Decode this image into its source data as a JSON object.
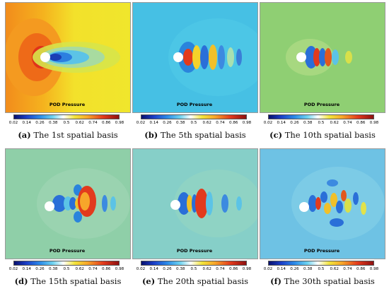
{
  "colorbar": {
    "label": "POD Pressure",
    "ticks": [
      "0.02",
      "0.14",
      "0.26",
      "0.38",
      "0.5",
      "0.62",
      "0.74",
      "0.86",
      "0.98"
    ]
  },
  "panels": [
    {
      "letter": "(a)",
      "title": "The 1st spatial basis"
    },
    {
      "letter": "(b)",
      "title": "The 5th spatial basis"
    },
    {
      "letter": "(c)",
      "title": "The 10th spatial basis"
    },
    {
      "letter": "(d)",
      "title": "The 15th spatial basis"
    },
    {
      "letter": "(e)",
      "title": "The 20th spatial basis"
    },
    {
      "letter": "(f)",
      "title": "The 30th spatial basis"
    }
  ]
}
